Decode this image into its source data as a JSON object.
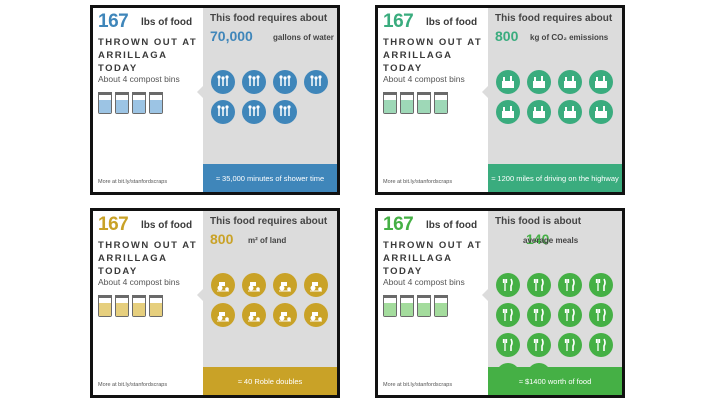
{
  "colors": {
    "water": "#3f86ba",
    "co2": "#3aac7e",
    "land": "#c9a227",
    "meals": "#45b045"
  },
  "cards": [
    {
      "big_number": "167",
      "lbs_label": "lbs of food",
      "thrown": "THROWN OUT AT\nARRILLAGA TODAY",
      "bins_label": "About 4 compost bins",
      "more": "More at bit.ly/stanfordscraps",
      "requires": "This food requires about",
      "value": "70,000",
      "unit": "gallons of water",
      "icon": "water-drop-icon",
      "icon_count": 7,
      "footer": "≈ 35,000 minutes of shower time",
      "color": "#3f86ba",
      "bin_color": "#9cc4e4"
    },
    {
      "big_number": "167",
      "lbs_label": "lbs of food",
      "thrown": "THROWN OUT AT\nARRILLAGA TODAY",
      "bins_label": "About 4 compost bins",
      "more": "More at bit.ly/stanfordscraps",
      "requires": "This food requires about",
      "value": "800",
      "unit": "kg of CO₂ emissions",
      "icon": "factory-icon",
      "icon_count": 8,
      "footer": "≈ 1200 miles of driving on the highway",
      "color": "#3aac7e",
      "bin_color": "#9ed8b7"
    },
    {
      "big_number": "167",
      "lbs_label": "lbs of food",
      "thrown": "THROWN OUT AT\nARRILLAGA TODAY",
      "bins_label": "About 4 compost bins",
      "more": "More at bit.ly/stanfordscraps",
      "requires": "This food requires about",
      "value": "800",
      "unit": "m² of land",
      "icon": "tractor-icon",
      "icon_count": 8,
      "footer": "≈ 40 Roble doubles",
      "color": "#c9a227",
      "bin_color": "#e6cf7e"
    },
    {
      "big_number": "167",
      "lbs_label": "lbs of food",
      "thrown": "THROWN OUT AT\nARRILLAGA TODAY",
      "bins_label": "About 4 compost bins",
      "more": "More at bit.ly/stanfordscraps",
      "requires": "This food is about",
      "value": "140",
      "unit": "average meals",
      "icon": "fork-knife-icon",
      "icon_count": 14,
      "footer": "≈ $1400 worth of food",
      "color": "#45b045",
      "bin_color": "#a4dc9d"
    }
  ]
}
